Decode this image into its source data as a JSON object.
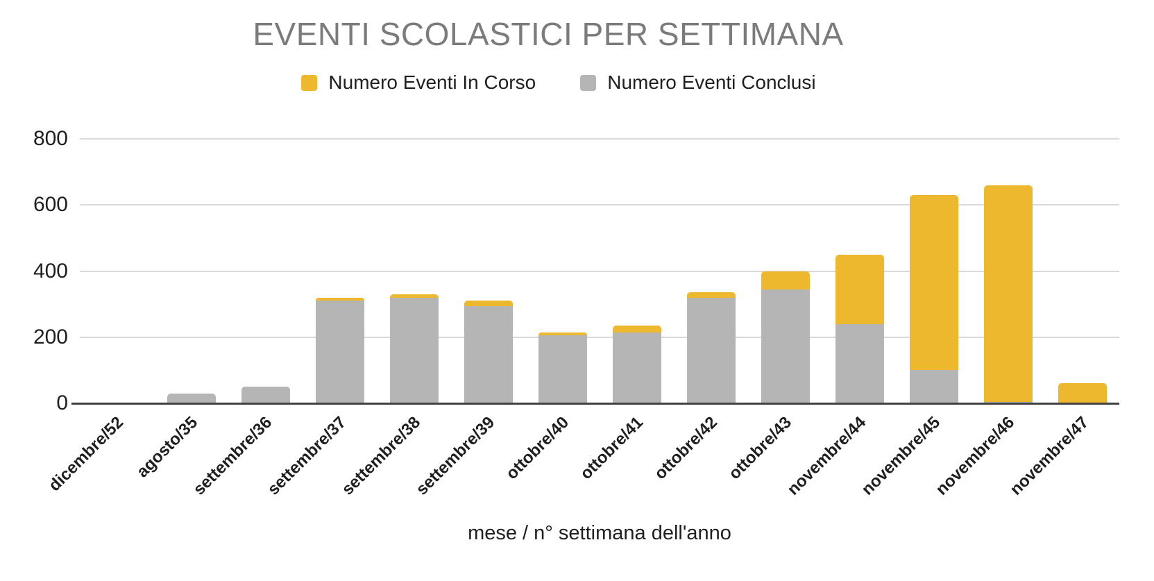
{
  "chart_data": {
    "type": "bar",
    "stacked": true,
    "title": "EVENTI SCOLASTICI PER SETTIMANA",
    "xlabel": "mese / n° settimana dell'anno",
    "ylabel": "",
    "ylim": [
      0,
      800
    ],
    "yticks": [
      0,
      200,
      400,
      600,
      800
    ],
    "grid": true,
    "legend_position": "top",
    "categories": [
      "dicembre/52",
      "agosto/35",
      "settembre/36",
      "settembre/37",
      "settembre/38",
      "settembre/39",
      "ottobre/40",
      "ottobre/41",
      "ottobre/42",
      "ottobre/43",
      "novembre/44",
      "novembre/45",
      "novembre/46",
      "novembre/47"
    ],
    "series": [
      {
        "name": "Numero Eventi In Corso",
        "color": "#EDB72E",
        "stack_position": "top",
        "values": [
          0,
          0,
          0,
          10,
          10,
          15,
          10,
          20,
          15,
          55,
          210,
          530,
          655,
          60
        ]
      },
      {
        "name": "Numero Eventi Conclusi",
        "color": "#B5B5B5",
        "stack_position": "bottom",
        "values": [
          0,
          30,
          50,
          310,
          320,
          295,
          205,
          215,
          320,
          345,
          240,
          100,
          5,
          0
        ]
      }
    ]
  },
  "colors": {
    "gridline": "#d9d9d9",
    "axis_line": "#424242",
    "title_text": "#7b7b7b",
    "label_text": "#1f1f1f",
    "background": "#ffffff"
  }
}
